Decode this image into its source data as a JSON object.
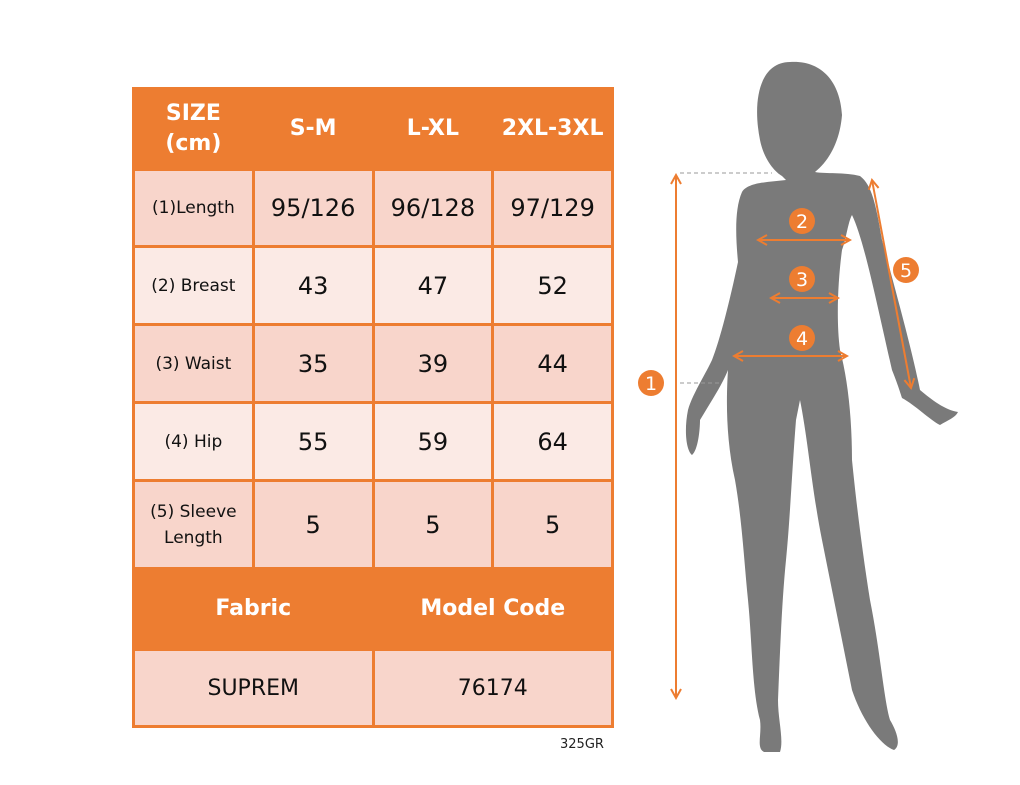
{
  "colors": {
    "accent": "#ED7D31",
    "cell_dark": "#F8D5CB",
    "cell_light": "#FBEAE5",
    "silhouette": "#7A7A7A"
  },
  "table": {
    "header": {
      "size_label": "SIZE",
      "unit_label": "(cm)",
      "sizes": [
        "S-M",
        "L-XL",
        "2XL-3XL"
      ]
    },
    "rows": [
      {
        "label": "(1)Length",
        "values": [
          "95/126",
          "96/128",
          "97/129"
        ]
      },
      {
        "label": "(2) Breast",
        "values": [
          "43",
          "47",
          "52"
        ]
      },
      {
        "label": "(3) Waist",
        "values": [
          "35",
          "39",
          "44"
        ]
      },
      {
        "label": "(4) Hip",
        "values": [
          "55",
          "59",
          "64"
        ]
      },
      {
        "label_line1": "(5) Sleeve",
        "label_line2": "Length",
        "values": [
          "5",
          "5",
          "5"
        ]
      }
    ],
    "footer": {
      "fabric_label": "Fabric",
      "model_code_label": "Model Code",
      "fabric": "SUPREM",
      "model_code": "76174"
    }
  },
  "product_code": "325GR",
  "markers": [
    "1",
    "2",
    "3",
    "4",
    "5"
  ]
}
